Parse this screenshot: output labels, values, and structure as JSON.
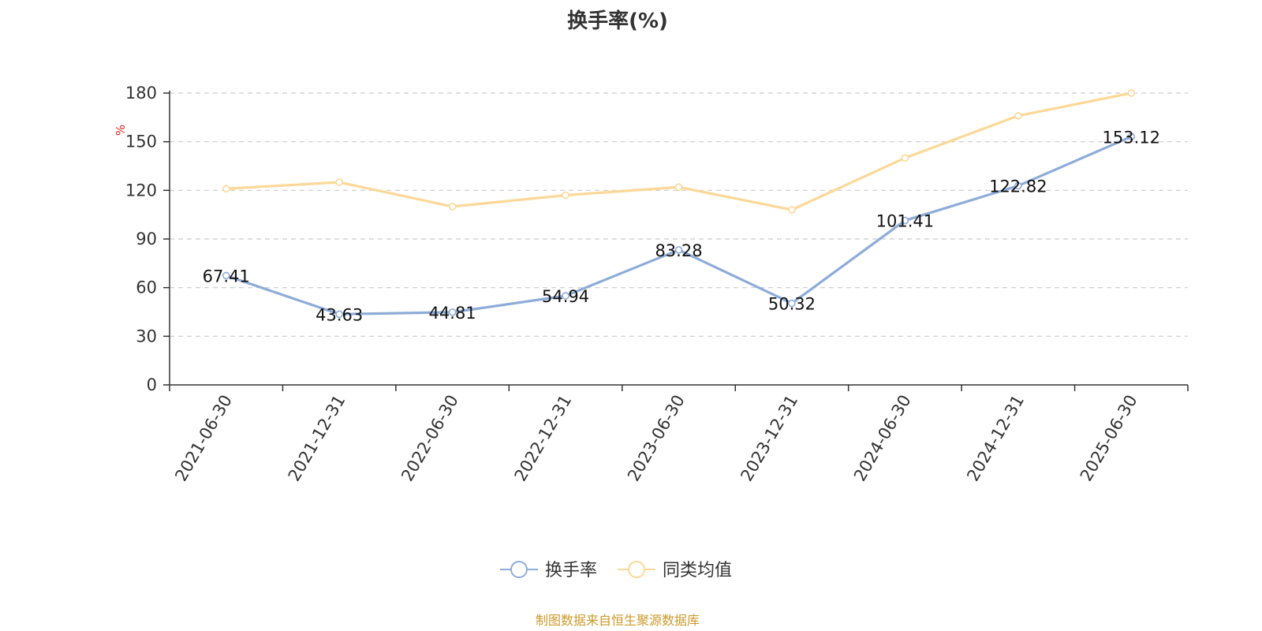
{
  "chart_data": {
    "type": "line",
    "title": "换手率(%)",
    "ylabel": "%",
    "categories": [
      "2021-06-30",
      "2021-12-31",
      "2022-06-30",
      "2022-12-31",
      "2023-06-30",
      "2023-12-31",
      "2024-06-30",
      "2024-12-31",
      "2025-06-30"
    ],
    "y_ticks": [
      "0",
      "30",
      "60",
      "90",
      "120",
      "150",
      "180"
    ],
    "ylim": [
      0,
      180
    ],
    "grid": true,
    "legend_position": "bottom-center",
    "series": [
      {
        "name": "换手率",
        "color": "#8eacd8",
        "values": [
          67.41,
          43.63,
          44.81,
          54.94,
          83.28,
          50.32,
          101.41,
          122.82,
          153.12
        ],
        "labels": [
          "67.41",
          "43.63",
          "44.81",
          "54.94",
          "83.28",
          "50.32",
          "101.41",
          "122.82",
          "153.12"
        ]
      },
      {
        "name": "同类均值",
        "color": "#fcd898",
        "values": [
          121,
          125,
          110,
          117,
          122,
          108,
          140,
          166,
          180
        ]
      }
    ]
  },
  "source_text": "制图数据来自恒生聚源数据库",
  "colors": {
    "source": "#cc9a2b",
    "unit": "#e02020",
    "axis": "#333333",
    "grid": "#cccccc"
  }
}
